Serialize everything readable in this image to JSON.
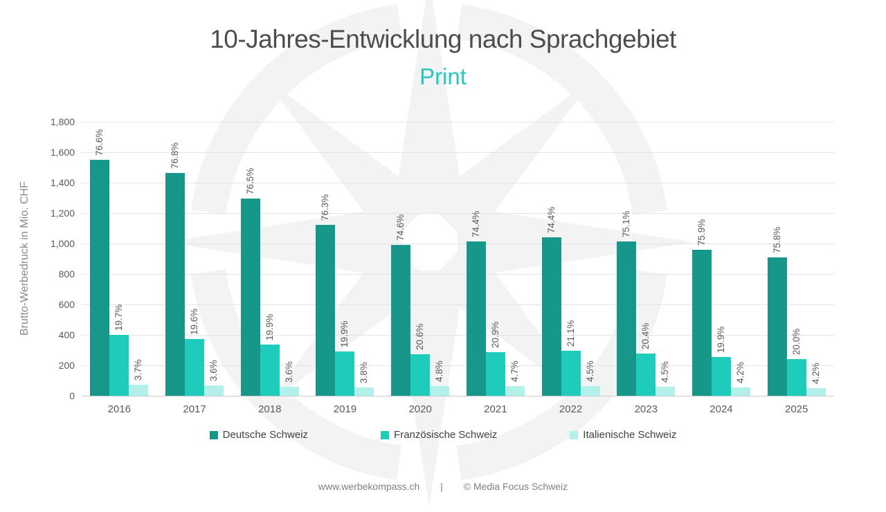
{
  "chart_data": {
    "type": "bar",
    "title": "10-Jahres-Entwicklung nach Sprachgebiet",
    "subtitle": "Print",
    "ylabel": "Brutto-Werbedruck in Mio. CHF",
    "ylim": [
      0,
      1800
    ],
    "grid": true,
    "legend_position": "bottom",
    "ytick_labels": [
      "1,800",
      "1,600",
      "1,400",
      "1,200",
      "1,000",
      "800",
      "600",
      "400",
      "200",
      "0"
    ],
    "categories": [
      "2016",
      "2017",
      "2018",
      "2019",
      "2020",
      "2021",
      "2022",
      "2023",
      "2024",
      "2025"
    ],
    "series": [
      {
        "name": "Deutsche Schweiz",
        "color": "#17978a",
        "values": [
          1550,
          1465,
          1295,
          1125,
          990,
          1015,
          1040,
          1015,
          960,
          910
        ],
        "labels": [
          "76.6%",
          "76.8%",
          "76.5%",
          "76.3%",
          "74.6%",
          "74.4%",
          "74.4%",
          "75.1%",
          "75.9%",
          "75.8%"
        ]
      },
      {
        "name": "Französische Schweiz",
        "color": "#1fccbb",
        "values": [
          400,
          375,
          337,
          293,
          274,
          286,
          295,
          276,
          253,
          240
        ],
        "labels": [
          "19.7%",
          "19.6%",
          "19.9%",
          "19.9%",
          "20.6%",
          "20.9%",
          "21.1%",
          "20.4%",
          "19.9%",
          "20.0%"
        ]
      },
      {
        "name": "Italienische Schweiz",
        "color": "#b3f0e9",
        "values": [
          75,
          69,
          61,
          56,
          64,
          64,
          63,
          61,
          53,
          50
        ],
        "labels": [
          "3.7%",
          "3.6%",
          "3.6%",
          "3.8%",
          "4.8%",
          "4.7%",
          "4.5%",
          "4.5%",
          "4.2%",
          "4.2%"
        ]
      }
    ]
  },
  "colors": {
    "title": "#4d4d4d",
    "subtitle_accent": "#26c7bd",
    "axis_text": "#595959",
    "watermark": "#f3f3f3"
  },
  "footer": {
    "site": "www.werbekompass.ch",
    "separator": "|",
    "copyright": "© Media Focus Schweiz"
  }
}
